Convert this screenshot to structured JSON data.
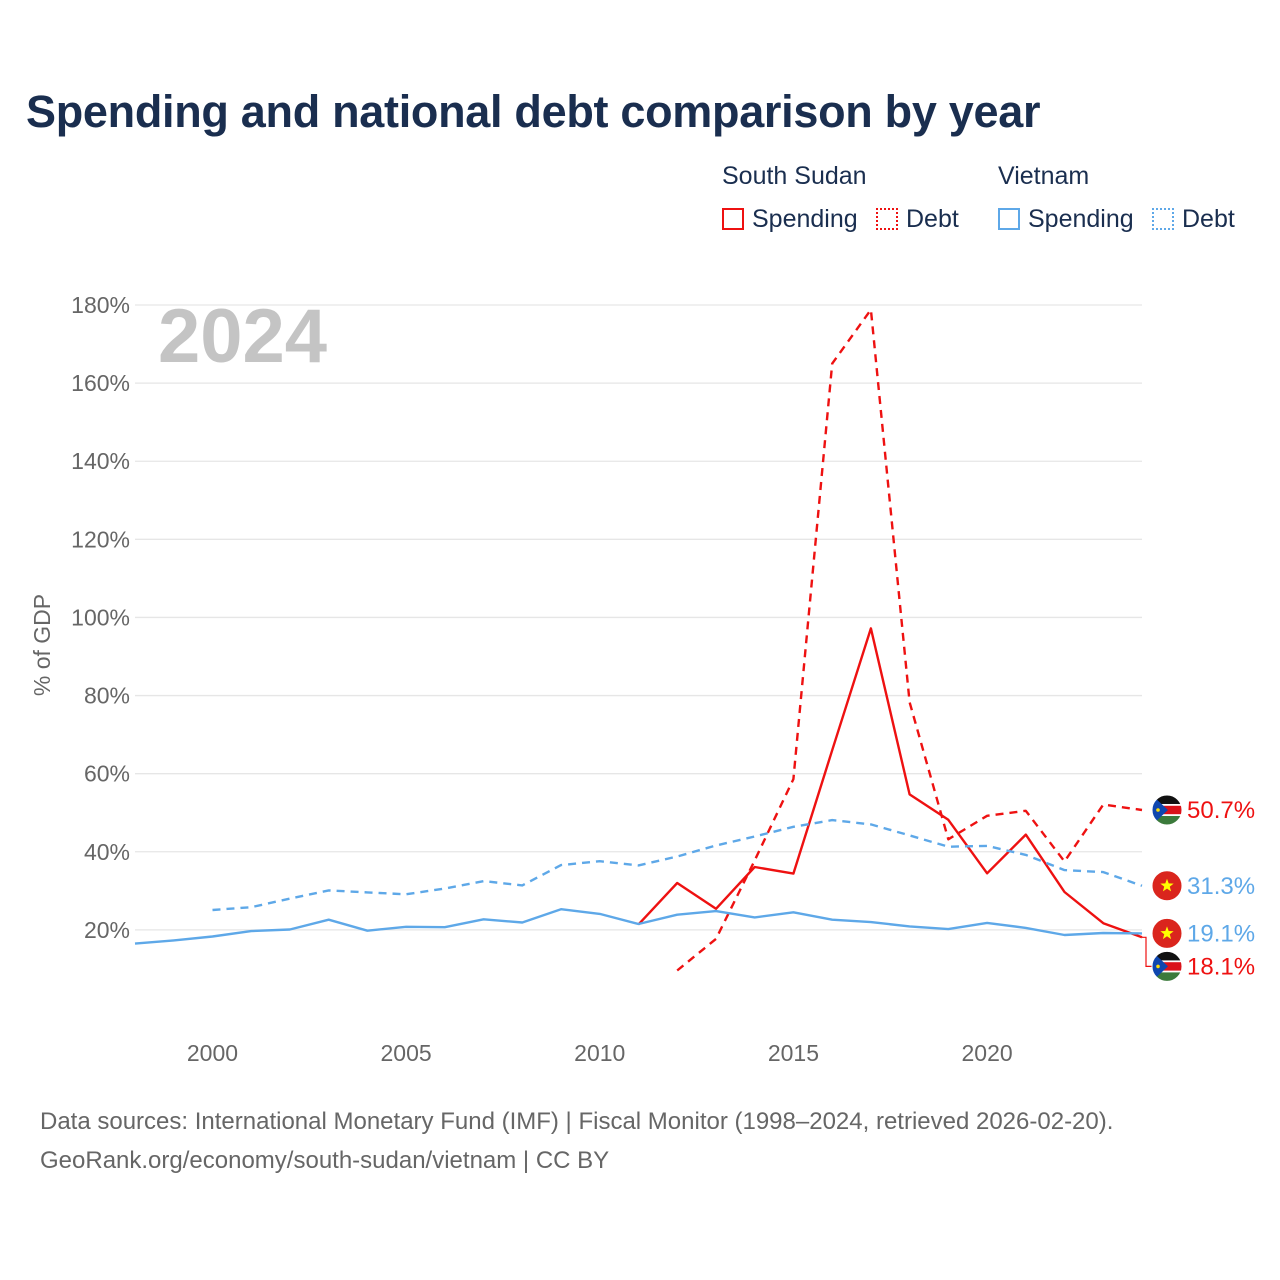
{
  "title": "Spending and national debt comparison by year",
  "legend": {
    "groups": [
      {
        "country": "South Sudan",
        "color": "#ee1111",
        "items": [
          {
            "label": "Spending",
            "style": "solid"
          },
          {
            "label": "Debt",
            "style": "dotted"
          }
        ]
      },
      {
        "country": "Vietnam",
        "color": "#5ea8e8",
        "items": [
          {
            "label": "Spending",
            "style": "solid"
          },
          {
            "label": "Debt",
            "style": "dotted"
          }
        ]
      }
    ]
  },
  "chart_data": {
    "type": "line",
    "year_watermark": "2024",
    "ylabel": "% of GDP",
    "xlabel": "",
    "xlim": [
      1998,
      2024
    ],
    "ylim": [
      0,
      180
    ],
    "x_ticks": [
      2000,
      2005,
      2010,
      2015,
      2020
    ],
    "y_ticks": [
      {
        "value": 20,
        "label": "20%"
      },
      {
        "value": 40,
        "label": "40%"
      },
      {
        "value": 60,
        "label": "60%"
      },
      {
        "value": 80,
        "label": "80%"
      },
      {
        "value": 100,
        "label": "100%"
      },
      {
        "value": 120,
        "label": "120%"
      },
      {
        "value": 140,
        "label": "140%"
      },
      {
        "value": 160,
        "label": "160%"
      },
      {
        "value": 180,
        "label": "180%"
      }
    ],
    "grid": true,
    "series": [
      {
        "name": "South Sudan Spending",
        "country": "South Sudan",
        "metric": "Spending",
        "color": "#ee1111",
        "dash": "solid",
        "x": [
          2011,
          2012,
          2013,
          2014,
          2015,
          2016,
          2017,
          2018,
          2019,
          2020,
          2021,
          2022,
          2023,
          2024
        ],
        "values": [
          21.4,
          32.0,
          25.4,
          36.1,
          34.4,
          66.0,
          97.2,
          54.7,
          48.2,
          34.5,
          44.4,
          29.7,
          21.7,
          18.1
        ],
        "end_label": "18.1%"
      },
      {
        "name": "South Sudan Debt",
        "country": "South Sudan",
        "metric": "Debt",
        "color": "#ee1111",
        "dash": "dashed",
        "x": [
          2012,
          2013,
          2014,
          2015,
          2016,
          2017,
          2018,
          2019,
          2020,
          2021,
          2022,
          2023,
          2024
        ],
        "values": [
          9.6,
          17.7,
          37.8,
          58.6,
          165.0,
          178.8,
          78.3,
          43.2,
          49.2,
          50.5,
          37.5,
          52.1,
          50.7
        ],
        "end_label": "50.7%"
      },
      {
        "name": "Vietnam Spending",
        "country": "Vietnam",
        "metric": "Spending",
        "color": "#5ea8e8",
        "dash": "solid",
        "x": [
          1998,
          1999,
          2000,
          2001,
          2002,
          2003,
          2004,
          2005,
          2006,
          2007,
          2008,
          2009,
          2010,
          2011,
          2012,
          2013,
          2014,
          2015,
          2016,
          2017,
          2018,
          2019,
          2020,
          2021,
          2022,
          2023,
          2024
        ],
        "values": [
          16.5,
          17.3,
          18.3,
          19.7,
          20.1,
          22.6,
          19.8,
          20.8,
          20.7,
          22.7,
          21.9,
          25.3,
          24.1,
          21.5,
          23.9,
          24.8,
          23.2,
          24.5,
          22.6,
          22.0,
          20.9,
          20.2,
          21.8,
          20.5,
          18.7,
          19.2,
          19.1
        ],
        "end_label": "19.1%"
      },
      {
        "name": "Vietnam Debt",
        "country": "Vietnam",
        "metric": "Debt",
        "color": "#5ea8e8",
        "dash": "dashed",
        "x": [
          2000,
          2001,
          2002,
          2003,
          2004,
          2005,
          2006,
          2007,
          2008,
          2009,
          2010,
          2011,
          2012,
          2013,
          2014,
          2015,
          2016,
          2017,
          2018,
          2019,
          2020,
          2021,
          2022,
          2023,
          2024
        ],
        "values": [
          25.1,
          25.8,
          28.0,
          30.1,
          29.6,
          29.1,
          30.6,
          32.5,
          31.4,
          36.6,
          37.6,
          36.5,
          38.8,
          41.6,
          43.9,
          46.4,
          48.1,
          47.0,
          44.2,
          41.3,
          41.5,
          39.2,
          35.3,
          34.8,
          31.3
        ],
        "end_label": "31.3%"
      }
    ]
  },
  "footer": {
    "line1": "Data sources: International Monetary Fund (IMF) | Fiscal Monitor (1998–2024, retrieved 2026-02-20).",
    "line2": "GeoRank.org/economy/south-sudan/vietnam | CC BY"
  }
}
